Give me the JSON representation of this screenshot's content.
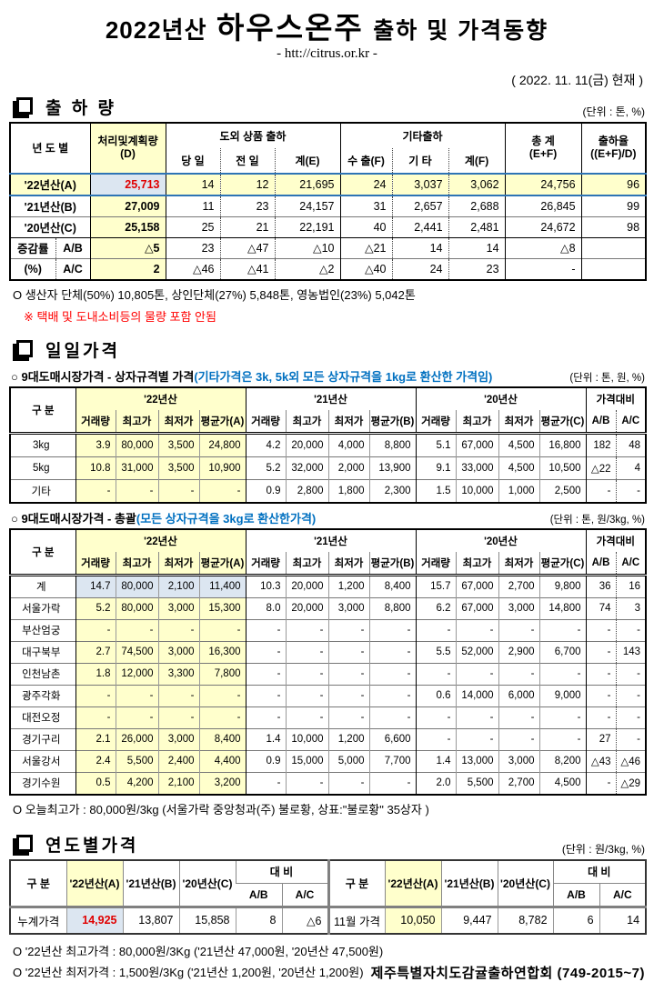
{
  "title": {
    "year": "2022년산",
    "product": "하우스온주",
    "rest": "출하 및 가격동향",
    "url": "- htt://citrus.or.kr -",
    "date": "( 2022.  11. 11(금) 현재 )"
  },
  "colors": {
    "highlight_yellow": "#FFFFCC",
    "highlight_blue": "#DCE6F1",
    "accent_red": "#E00000",
    "note_blue": "#0070C0",
    "note_red": "#FF0000",
    "row_border_blue": "#2E74B5"
  },
  "sections": {
    "shipment": {
      "heading": "출 하 량",
      "unit": "(단위 : 톤, %)"
    },
    "daily": {
      "heading": "일일가격",
      "byBox": {
        "label": "○ 9대도매시장가격 - 상자규격별 가격",
        "paren": "(기타가격은 3k, 5k외 모든 상자규격을 1kg로 환산한 가격임)",
        "unit": "(단위 : 톤,  원, %)"
      },
      "overall": {
        "label": "○ 9대도매시장가격 - 총괄",
        "paren": "(모든 상자규격을 3kg로 환산한가격)",
        "unit": "(단위 : 톤, 원/3kg, %)"
      },
      "todayHigh": "O 오늘최고가 : 80,000원/3kg (서울가락  중앙청과(주)   불로황,   상표:\"불로황\"   35상자 )"
    },
    "yearly": {
      "heading": "연도별가격",
      "unit": "(단위 : 원/3kg, %)"
    }
  },
  "t1": {
    "h": {
      "col0": "년 도 별",
      "d": "처리및계획량",
      "d2": "(D)",
      "grp1": "도외 상품 출하",
      "c1": "당 일",
      "c2": "전 일",
      "c3": "계(E)",
      "grp2": "기타출하",
      "c4": "수 출(F)",
      "c5": "기 타",
      "c6": "계(F)",
      "tot1": "총   계",
      "tot2": "(E+F)",
      "rate1": "출하율",
      "rate2": "((E+F)/D)"
    },
    "rows": [
      [
        "'22년산(A)",
        "25,713",
        "14",
        "12",
        "21,695",
        "24",
        "3,037",
        "3,062",
        "24,756",
        "96"
      ],
      [
        "'21년산(B)",
        "27,009",
        "11",
        "23",
        "24,157",
        "31",
        "2,657",
        "2,688",
        "26,845",
        "99"
      ],
      [
        "'20년산(C)",
        "25,158",
        "25",
        "21",
        "22,191",
        "40",
        "2,441",
        "2,481",
        "24,672",
        "98"
      ],
      [
        "증감률",
        "A/B",
        "△5",
        "23",
        "△47",
        "△10",
        "△21",
        "14",
        "14",
        "△8",
        ""
      ],
      [
        "(%)",
        "A/C",
        "2",
        "△46",
        "△41",
        "△2",
        "△40",
        "24",
        "23",
        "-",
        ""
      ]
    ],
    "note1": "O 생산자 단체(50%)  10,805톤,    상인단체(27%)  5,848톤,    영농법인(23%)   5,042톤",
    "note2": "※ 택배 및 도내소비등의 물량 포함 안됨"
  },
  "ph": {
    "col0": "구   분",
    "y22": "'22년산",
    "y21": "'21년산",
    "y20": "'20년산",
    "cmp": "가격대비",
    "qty": "거래량",
    "high": "최고가",
    "low": "최저가",
    "avgA": "평균가(A)",
    "avgB": "평균가(B)",
    "avgC": "평균가(C)",
    "ab": "A/B",
    "ac": "A/C"
  },
  "t2": {
    "rows": [
      [
        "3kg",
        "3.9",
        "80,000",
        "3,500",
        "24,800",
        "4.2",
        "20,000",
        "4,000",
        "8,800",
        "5.1",
        "67,000",
        "4,500",
        "16,800",
        "182",
        "48"
      ],
      [
        "5kg",
        "10.8",
        "31,000",
        "3,500",
        "10,900",
        "5.2",
        "32,000",
        "2,000",
        "13,900",
        "9.1",
        "33,000",
        "4,500",
        "10,500",
        "△22",
        "4"
      ],
      [
        "기타",
        "-",
        "-",
        "-",
        "-",
        "0.9",
        "2,800",
        "1,800",
        "2,300",
        "1.5",
        "10,000",
        "1,000",
        "2,500",
        "-",
        "-"
      ]
    ]
  },
  "t3": {
    "rows": [
      [
        "계",
        "14.7",
        "80,000",
        "2,100",
        "11,400",
        "10.3",
        "20,000",
        "1,200",
        "8,400",
        "15.7",
        "67,000",
        "2,700",
        "9,800",
        "36",
        "16"
      ],
      [
        "서울가락",
        "5.2",
        "80,000",
        "3,000",
        "15,300",
        "8.0",
        "20,000",
        "3,000",
        "8,800",
        "6.2",
        "67,000",
        "3,000",
        "14,800",
        "74",
        "3"
      ],
      [
        "부산엄궁",
        "-",
        "-",
        "-",
        "-",
        "-",
        "-",
        "-",
        "-",
        "-",
        "-",
        "-",
        "-",
        "-",
        "-"
      ],
      [
        "대구북부",
        "2.7",
        "74,500",
        "3,000",
        "16,300",
        "-",
        "-",
        "-",
        "-",
        "5.5",
        "52,000",
        "2,900",
        "6,700",
        "-",
        "143"
      ],
      [
        "인천남촌",
        "1.8",
        "12,000",
        "3,300",
        "7,800",
        "-",
        "-",
        "-",
        "-",
        "-",
        "-",
        "-",
        "-",
        "-",
        "-"
      ],
      [
        "광주각화",
        "-",
        "-",
        "-",
        "-",
        "-",
        "-",
        "-",
        "-",
        "0.6",
        "14,000",
        "6,000",
        "9,000",
        "-",
        "-"
      ],
      [
        "대전오정",
        "-",
        "-",
        "-",
        "-",
        "-",
        "-",
        "-",
        "-",
        "-",
        "-",
        "-",
        "-",
        "-",
        "-"
      ],
      [
        "경기구리",
        "2.1",
        "26,000",
        "3,000",
        "8,400",
        "1.4",
        "10,000",
        "1,200",
        "6,600",
        "-",
        "-",
        "-",
        "-",
        "27",
        "-"
      ],
      [
        "서울강서",
        "2.4",
        "5,500",
        "2,400",
        "4,400",
        "0.9",
        "15,000",
        "5,000",
        "7,700",
        "1.4",
        "13,000",
        "3,000",
        "8,200",
        "△43",
        "△46"
      ],
      [
        "경기수원",
        "0.5",
        "4,200",
        "2,100",
        "3,200",
        "-",
        "-",
        "-",
        "-",
        "2.0",
        "5,500",
        "2,700",
        "4,500",
        "-",
        "△29"
      ]
    ]
  },
  "t4": {
    "h": {
      "col0": "구   분",
      "a": "'22년산(A)",
      "b": "'21년산(B)",
      "c": "'20년산(C)",
      "cmp": "대   비",
      "ab": "A/B",
      "ac": "A/C"
    },
    "rows": [
      [
        "누계가격",
        "14,925",
        "13,807",
        "15,858",
        "8",
        "△6",
        "11월 가격",
        "10,050",
        "9,447",
        "8,782",
        "6",
        "14"
      ]
    ]
  },
  "footer": {
    "line1": "O '22년산 최고가격 : 80,000원/3Kg ('21년산 47,000원,  '20년산 47,500원)",
    "line2": "O '22년산 최저가격 :   1,500원/3Kg ('21년산   1,200원,  '20년산  1,200원)",
    "org": "제주특별자치도감귤출하연합회 (749-2015~7)"
  }
}
